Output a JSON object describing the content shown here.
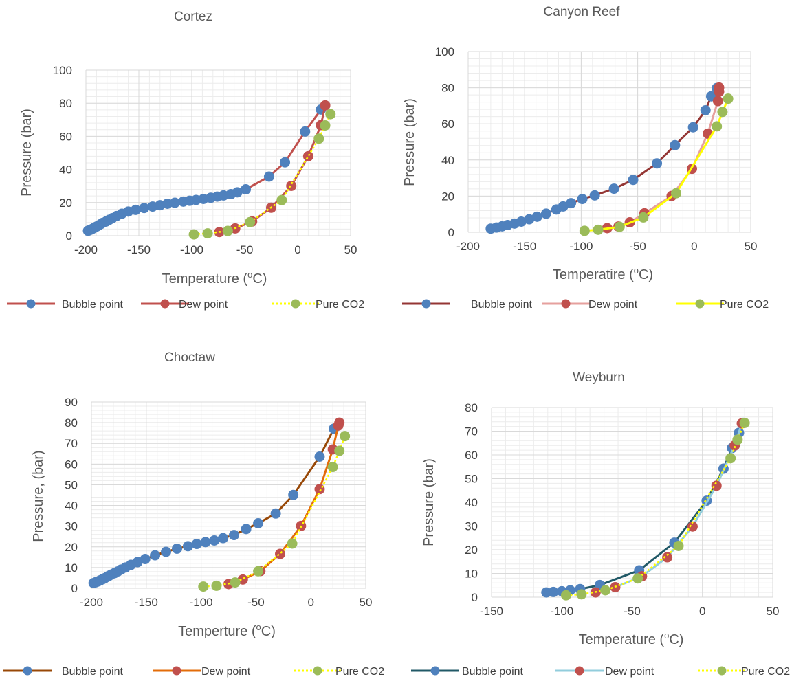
{
  "chart_data": [
    {
      "type": "line",
      "title": "Cortez",
      "xlabel": "Temperature (",
      "xlabel_unit": "C)",
      "ylabel": "Pressure (bar)",
      "xlim": [
        -200,
        50
      ],
      "ylim": [
        0,
        100
      ],
      "xticks": [
        -200,
        -150,
        -100,
        -50,
        0,
        50
      ],
      "yticks": [
        0,
        20,
        40,
        60,
        80,
        100
      ],
      "grid": true,
      "legend_position": "bottom",
      "series": [
        {
          "name": "Bubble point",
          "line_color": "#c0504d",
          "marker_color": "#4f81bd",
          "dash": "solid",
          "points": [
            [
              -198,
              3
            ],
            [
              -196,
              3.5
            ],
            [
              -194,
              4.1
            ],
            [
              -192,
              4.8
            ],
            [
              -190,
              5.5
            ],
            [
              -188,
              6.2
            ],
            [
              -186,
              7
            ],
            [
              -184,
              7.8
            ],
            [
              -181,
              8.6
            ],
            [
              -178,
              9.6
            ],
            [
              -175,
              10.6
            ],
            [
              -171,
              11.9
            ],
            [
              -166,
              13.3
            ],
            [
              -160,
              14.6
            ],
            [
              -153,
              15.6
            ],
            [
              -145,
              16.7
            ],
            [
              -137,
              17.6
            ],
            [
              -130,
              18.4
            ],
            [
              -123,
              19.3
            ],
            [
              -116,
              19.9
            ],
            [
              -108,
              20.6
            ],
            [
              -102,
              21.1
            ],
            [
              -96,
              21.6
            ],
            [
              -89,
              22.2
            ],
            [
              -82,
              22.9
            ],
            [
              -76,
              23.6
            ],
            [
              -70,
              24.3
            ],
            [
              -63,
              25.1
            ],
            [
              -57,
              26.2
            ],
            [
              -49,
              28
            ],
            [
              -27,
              35.7
            ],
            [
              -12,
              44.3
            ],
            [
              7,
              62.9
            ],
            [
              22,
              76.2
            ]
          ]
        },
        {
          "name": "Dew point",
          "line_color": "#c0504d",
          "marker_color": "#c0504d",
          "dash": "solid",
          "points": [
            [
              -74,
              2.2
            ],
            [
              -59,
              4.4
            ],
            [
              -43,
              8.6
            ],
            [
              -25,
              16.9
            ],
            [
              -6,
              30.1
            ],
            [
              10,
              48
            ],
            [
              22,
              66.8
            ],
            [
              26,
              78.7
            ]
          ]
        },
        {
          "name": "Pure CO2",
          "line_color": "#ffff00",
          "marker_color": "#9bbb59",
          "dash": "dot",
          "points": [
            [
              -98,
              0.8
            ],
            [
              -85,
              1.4
            ],
            [
              -66,
              2.9
            ],
            [
              -45,
              8.2
            ],
            [
              -15,
              21.5
            ],
            [
              20,
              58.6
            ],
            [
              26,
              66.6
            ],
            [
              31,
              73.4
            ]
          ]
        }
      ]
    },
    {
      "type": "line",
      "title": "Canyon Reef",
      "xlabel": "Temperatire (",
      "xlabel_unit": "C)",
      "ylabel": "Pressure (bar)",
      "xlim": [
        -200,
        50
      ],
      "ylim": [
        0,
        100
      ],
      "xticks": [
        -200,
        -150,
        -100,
        -50,
        0,
        50
      ],
      "yticks": [
        0,
        20,
        40,
        60,
        80,
        100
      ],
      "grid": true,
      "legend_position": "bottom",
      "series": [
        {
          "name": "Bubble point",
          "line_color": "#943634",
          "marker_color": "#4f81bd",
          "dash": "solid",
          "points": [
            [
              -180,
              2
            ],
            [
              -175,
              2.6
            ],
            [
              -170,
              3.3
            ],
            [
              -165,
              4
            ],
            [
              -159,
              4.8
            ],
            [
              -153,
              5.9
            ],
            [
              -146,
              7.2
            ],
            [
              -139,
              8.6
            ],
            [
              -131,
              10.3
            ],
            [
              -122,
              12.6
            ],
            [
              -116,
              14.3
            ],
            [
              -109,
              16.1
            ],
            [
              -99,
              18.4
            ],
            [
              -88,
              20.4
            ],
            [
              -71,
              24.1
            ],
            [
              -54,
              29
            ],
            [
              -33,
              38.1
            ],
            [
              -17,
              48.2
            ],
            [
              -1,
              58.1
            ],
            [
              10,
              67.5
            ],
            [
              15,
              75.2
            ],
            [
              20,
              79.8
            ]
          ]
        },
        {
          "name": "Dew point",
          "line_color": "#e6a09e",
          "marker_color": "#c0504d",
          "dash": "solid",
          "points": [
            [
              -77,
              2.3
            ],
            [
              -67,
              3.2
            ],
            [
              -57,
              5.5
            ],
            [
              -44,
              10.5
            ],
            [
              -20,
              20.1
            ],
            [
              -2,
              35.1
            ],
            [
              12,
              54.6
            ],
            [
              21,
              72.6
            ],
            [
              22,
              77.8
            ],
            [
              22,
              80.1
            ]
          ]
        },
        {
          "name": "Pure CO2",
          "line_color": "#ffff00",
          "marker_color": "#9bbb59",
          "dash": "solid",
          "points": [
            [
              -97,
              0.8
            ],
            [
              -85,
              1.4
            ],
            [
              -66,
              3
            ],
            [
              -45,
              8.2
            ],
            [
              -16,
              21.6
            ],
            [
              20,
              58.6
            ],
            [
              25,
              66.6
            ],
            [
              30,
              73.9
            ]
          ]
        }
      ]
    },
    {
      "type": "line",
      "title": "Choctaw",
      "xlabel": "Temperture (",
      "xlabel_unit": "C)",
      "ylabel": "Pressure, (bar)",
      "xlim": [
        -200,
        50
      ],
      "ylim": [
        0,
        90
      ],
      "xticks": [
        -200,
        -150,
        -100,
        -50,
        0,
        50
      ],
      "yticks": [
        0,
        10,
        20,
        30,
        40,
        50,
        60,
        70,
        80,
        90
      ],
      "grid": true,
      "legend_position": "bottom",
      "series": [
        {
          "name": "Bubble point",
          "line_color": "#984807",
          "marker_color": "#4f81bd",
          "dash": "solid",
          "points": [
            [
              -198,
              2.5
            ],
            [
              -196,
              2.9
            ],
            [
              -194,
              3.3
            ],
            [
              -192,
              3.8
            ],
            [
              -190,
              4.3
            ],
            [
              -188,
              4.8
            ],
            [
              -186,
              5.4
            ],
            [
              -184,
              6
            ],
            [
              -182,
              6.6
            ],
            [
              -179,
              7.3
            ],
            [
              -176,
              8.1
            ],
            [
              -173,
              9
            ],
            [
              -169,
              10
            ],
            [
              -164,
              11.3
            ],
            [
              -158,
              12.6
            ],
            [
              -151,
              14.1
            ],
            [
              -142,
              15.9
            ],
            [
              -132,
              17.6
            ],
            [
              -122,
              19.1
            ],
            [
              -112,
              20.3
            ],
            [
              -104,
              21.4
            ],
            [
              -96,
              22.3
            ],
            [
              -88,
              23.1
            ],
            [
              -80,
              24.2
            ],
            [
              -70,
              25.7
            ],
            [
              -59,
              28.6
            ],
            [
              -48,
              31.4
            ],
            [
              -32,
              36.1
            ],
            [
              -16,
              45.1
            ],
            [
              8,
              63.6
            ],
            [
              21,
              77.1
            ]
          ]
        },
        {
          "name": "Dew point",
          "line_color": "#e36c09",
          "marker_color": "#c0504d",
          "dash": "solid",
          "points": [
            [
              -75,
              2
            ],
            [
              -62,
              4.2
            ],
            [
              -46,
              8.3
            ],
            [
              -28,
              16.6
            ],
            [
              -9,
              30.1
            ],
            [
              8,
              47.9
            ],
            [
              20,
              67.1
            ],
            [
              25,
              78.6
            ],
            [
              26,
              80
            ]
          ]
        },
        {
          "name": "Pure CO2",
          "line_color": "#ffff00",
          "marker_color": "#9bbb59",
          "dash": "dot",
          "points": [
            [
              -98,
              0.8
            ],
            [
              -86,
              1.2
            ],
            [
              -69,
              2.8
            ],
            [
              -48,
              8.2
            ],
            [
              -17,
              21.6
            ],
            [
              20,
              58.6
            ],
            [
              26,
              66.4
            ],
            [
              31,
              73.5
            ]
          ]
        }
      ]
    },
    {
      "type": "line",
      "title": "Weyburn",
      "xlabel": "Temperature (",
      "xlabel_unit": "C)",
      "ylabel": "Pressure (bar)",
      "xlim": [
        -150,
        50
      ],
      "ylim": [
        0,
        80
      ],
      "xticks": [
        -150,
        -100,
        -50,
        0,
        50
      ],
      "yticks": [
        0,
        10,
        20,
        30,
        40,
        50,
        60,
        70,
        80
      ],
      "grid": true,
      "legend_position": "bottom",
      "series": [
        {
          "name": "Bubble point",
          "line_color": "#215967",
          "marker_color": "#4f81bd",
          "dash": "solid",
          "points": [
            [
              -111,
              2
            ],
            [
              -106,
              2.2
            ],
            [
              -100,
              2.5
            ],
            [
              -94,
              2.9
            ],
            [
              -87,
              3.4
            ],
            [
              -73,
              5.1
            ],
            [
              -45,
              11.3
            ],
            [
              -20,
              23
            ],
            [
              3,
              40.7
            ],
            [
              15,
              54.2
            ],
            [
              21,
              62.9
            ],
            [
              26,
              69.3
            ],
            [
              29,
              73.5
            ]
          ]
        },
        {
          "name": "Dew point",
          "line_color": "#92cddc",
          "marker_color": "#c0504d",
          "dash": "solid",
          "points": [
            [
              -76,
              2
            ],
            [
              -62,
              4.2
            ],
            [
              -43,
              8.8
            ],
            [
              -25,
              16.8
            ],
            [
              -7,
              29.8
            ],
            [
              10,
              47
            ],
            [
              23,
              64
            ],
            [
              28,
              73.3
            ]
          ]
        },
        {
          "name": "Pure CO2",
          "line_color": "#ffff00",
          "marker_color": "#9bbb59",
          "dash": "dot",
          "points": [
            [
              -97,
              0.8
            ],
            [
              -86,
              1.2
            ],
            [
              -69,
              2.9
            ],
            [
              -46,
              7.9
            ],
            [
              -17,
              21.6
            ],
            [
              20,
              58.6
            ],
            [
              25,
              66.4
            ],
            [
              30,
              73.5
            ]
          ]
        }
      ]
    }
  ]
}
